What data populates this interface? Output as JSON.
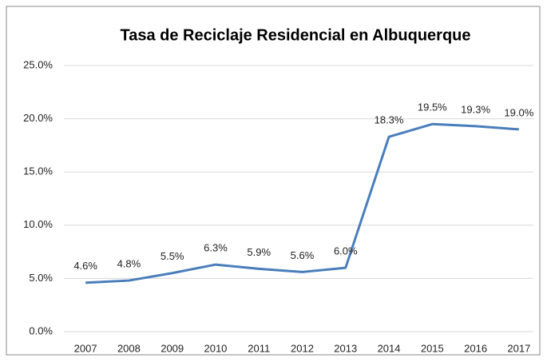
{
  "chart_data": {
    "type": "line",
    "title": "Tasa de Reciclaje Residencial en Albuquerque",
    "categories": [
      "2007",
      "2008",
      "2009",
      "2010",
      "2011",
      "2012",
      "2013",
      "2014",
      "2015",
      "2016",
      "2017"
    ],
    "values": [
      4.6,
      4.8,
      5.5,
      6.3,
      5.9,
      5.6,
      6.0,
      18.3,
      19.5,
      19.3,
      19.0
    ],
    "value_labels": [
      "4.6%",
      "4.8%",
      "5.5%",
      "6.3%",
      "5.9%",
      "5.6%",
      "6.0%",
      "18.3%",
      "19.5%",
      "19.3%",
      "19.0%"
    ],
    "color": "#4a7ebb",
    "ylim": [
      0,
      25
    ],
    "yticks": [
      {
        "value": 0,
        "label": "0.0%"
      },
      {
        "value": 5,
        "label": "5.0%"
      },
      {
        "value": 10,
        "label": "10.0%"
      },
      {
        "value": 15,
        "label": "15.0%"
      },
      {
        "value": 20,
        "label": "20.0%"
      },
      {
        "value": 25,
        "label": "25.0%"
      }
    ],
    "grid": true
  }
}
